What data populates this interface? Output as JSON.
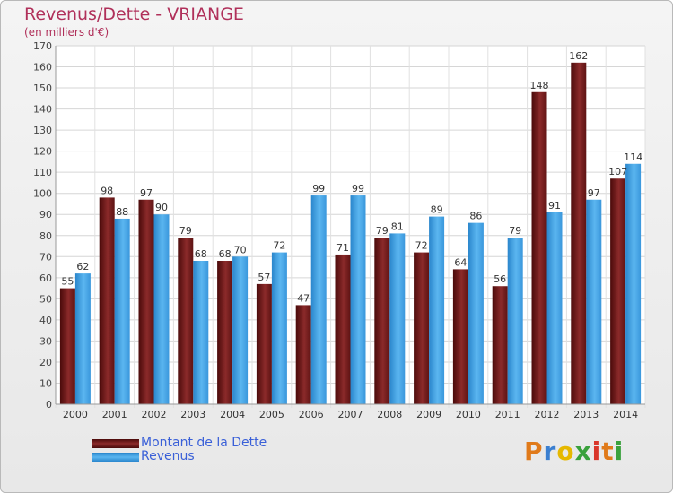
{
  "chart_data": {
    "type": "bar",
    "title": "Revenus/Dette - VRIANGE",
    "subtitle": "(en milliers d'€)",
    "categories": [
      "2000",
      "2001",
      "2002",
      "2003",
      "2004",
      "2005",
      "2006",
      "2007",
      "2008",
      "2009",
      "2010",
      "2011",
      "2012",
      "2013",
      "2014"
    ],
    "series": [
      {
        "name": "Montant de la Dette",
        "color": "#7a1c1c",
        "values": [
          55,
          98,
          97,
          79,
          68,
          57,
          47,
          71,
          79,
          72,
          64,
          56,
          148,
          162,
          107
        ]
      },
      {
        "name": "Revenus",
        "color": "#3d9de0",
        "values": [
          62,
          88,
          90,
          68,
          70,
          72,
          99,
          99,
          81,
          89,
          86,
          79,
          91,
          97,
          114
        ]
      }
    ],
    "ylim": [
      0,
      170
    ],
    "yticks": [
      0,
      10,
      20,
      30,
      40,
      50,
      60,
      70,
      80,
      90,
      100,
      110,
      120,
      130,
      140,
      150,
      160,
      170
    ],
    "grid": true,
    "legend_position": "bottom-left"
  },
  "brand": {
    "letters": [
      "P",
      "r",
      "o",
      "x",
      "i",
      "t",
      "i"
    ],
    "colors": [
      "#e07a1a",
      "#3b7fd0",
      "#e6b800",
      "#39a13c",
      "#d9362b",
      "#e07a1a",
      "#39a13c"
    ]
  }
}
